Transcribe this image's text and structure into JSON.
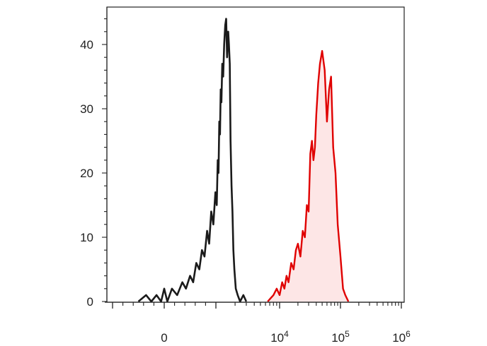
{
  "chart_data": {
    "type": "histogram-overlay",
    "title": "",
    "xlabel": "",
    "ylabel": "",
    "x_scale": "biexponential",
    "y_range": [
      0,
      45
    ],
    "y_ticks": [
      {
        "value": 0,
        "label": "0"
      },
      {
        "value": 10,
        "label": "10"
      },
      {
        "value": 20,
        "label": "20"
      },
      {
        "value": 30,
        "label": "30"
      },
      {
        "value": 40,
        "label": "40"
      }
    ],
    "x_ticks": [
      {
        "value": 0,
        "label": "0",
        "exp": ""
      },
      {
        "value": 10000,
        "label": "10",
        "exp": "4"
      },
      {
        "value": 100000,
        "label": "10",
        "exp": "5"
      },
      {
        "value": 1000000,
        "label": "10",
        "exp": "6"
      }
    ],
    "series": [
      {
        "color": "#1a1a1a",
        "fill": "none",
        "x": [
          -500,
          -350,
          -250,
          -150,
          -60,
          0,
          60,
          150,
          250,
          350,
          420,
          500,
          560,
          620,
          680,
          730,
          780,
          830,
          870,
          910,
          950,
          990,
          1030,
          1070,
          1100,
          1130,
          1160,
          1190,
          1220,
          1260,
          1300,
          1350,
          1400,
          1450,
          1500,
          1560,
          1600,
          1650,
          1700,
          1760,
          1820,
          1880,
          1950,
          2050,
          2200,
          2400,
          2700,
          3000
        ],
        "y": [
          0,
          1,
          0,
          1,
          0,
          2,
          0,
          2,
          1,
          3,
          2,
          4,
          3,
          6,
          5,
          8,
          7,
          11,
          9,
          14,
          12,
          17,
          15,
          22,
          20,
          28,
          26,
          33,
          31,
          37,
          35,
          40,
          43,
          44,
          38,
          42,
          40,
          37,
          25,
          18,
          14,
          8,
          5,
          2,
          1,
          0,
          1,
          0
        ]
      },
      {
        "color": "#e00000",
        "fill": "#fde6e6",
        "x": [
          6500,
          8000,
          9000,
          10000,
          11000,
          12000,
          13000,
          14000,
          15500,
          17000,
          18500,
          20000,
          22000,
          24000,
          26000,
          28000,
          30000,
          32000,
          34000,
          36000,
          38000,
          40000,
          43000,
          46000,
          50000,
          55000,
          60000,
          65000,
          70000,
          76000,
          83000,
          90000,
          100000,
          110000,
          120000,
          135000
        ],
        "y": [
          0,
          1,
          2,
          1,
          3,
          2,
          4,
          3,
          6,
          5,
          8,
          9,
          7,
          11,
          10,
          15,
          14,
          23,
          25,
          22,
          24,
          29,
          34,
          37,
          39,
          36,
          28,
          33,
          35,
          24,
          20,
          12,
          7,
          2,
          1,
          0
        ]
      }
    ]
  }
}
